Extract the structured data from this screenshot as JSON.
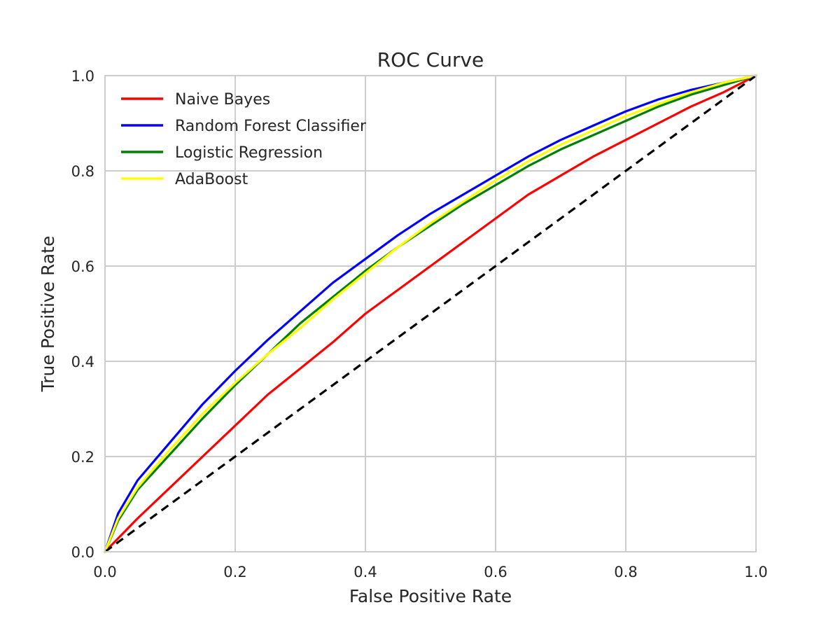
{
  "chart_data": {
    "type": "line",
    "title": "ROC Curve",
    "xlabel": "False Positive Rate",
    "ylabel": "True Positive Rate",
    "xlim": [
      0.0,
      1.0
    ],
    "ylim": [
      0.0,
      1.0
    ],
    "xticks": [
      "0.0",
      "0.2",
      "0.4",
      "0.6",
      "0.8",
      "1.0"
    ],
    "yticks": [
      "0.0",
      "0.2",
      "0.4",
      "0.6",
      "0.8",
      "1.0"
    ],
    "grid": true,
    "legend_position": "upper-left",
    "series": [
      {
        "name": "Naive Bayes",
        "color": "#ff0000",
        "x": [
          0.0,
          0.05,
          0.1,
          0.15,
          0.2,
          0.25,
          0.3,
          0.35,
          0.4,
          0.45,
          0.5,
          0.55,
          0.6,
          0.65,
          0.7,
          0.75,
          0.8,
          0.85,
          0.9,
          0.95,
          1.0
        ],
        "y": [
          0.0,
          0.07,
          0.135,
          0.2,
          0.265,
          0.33,
          0.385,
          0.44,
          0.5,
          0.55,
          0.6,
          0.65,
          0.7,
          0.75,
          0.79,
          0.83,
          0.865,
          0.9,
          0.935,
          0.965,
          1.0
        ]
      },
      {
        "name": "Random Forest Classifier",
        "color": "#0000ff",
        "x": [
          0.0,
          0.02,
          0.05,
          0.1,
          0.15,
          0.2,
          0.25,
          0.3,
          0.35,
          0.4,
          0.45,
          0.5,
          0.55,
          0.6,
          0.65,
          0.7,
          0.75,
          0.8,
          0.85,
          0.9,
          0.95,
          1.0
        ],
        "y": [
          0.0,
          0.08,
          0.15,
          0.23,
          0.31,
          0.38,
          0.445,
          0.505,
          0.565,
          0.615,
          0.665,
          0.71,
          0.75,
          0.79,
          0.83,
          0.865,
          0.895,
          0.925,
          0.95,
          0.97,
          0.985,
          1.0
        ]
      },
      {
        "name": "Logistic Regression",
        "color": "#008000",
        "x": [
          0.0,
          0.02,
          0.05,
          0.1,
          0.15,
          0.2,
          0.25,
          0.3,
          0.35,
          0.4,
          0.45,
          0.5,
          0.55,
          0.6,
          0.65,
          0.7,
          0.75,
          0.8,
          0.85,
          0.9,
          0.95,
          1.0
        ],
        "y": [
          0.0,
          0.065,
          0.13,
          0.205,
          0.28,
          0.35,
          0.415,
          0.48,
          0.535,
          0.59,
          0.64,
          0.685,
          0.73,
          0.77,
          0.81,
          0.845,
          0.875,
          0.905,
          0.935,
          0.96,
          0.98,
          1.0
        ]
      },
      {
        "name": "AdaBoost",
        "color": "#ffff00",
        "x": [
          0.0,
          0.02,
          0.05,
          0.1,
          0.15,
          0.2,
          0.25,
          0.3,
          0.35,
          0.4,
          0.45,
          0.5,
          0.55,
          0.6,
          0.65,
          0.7,
          0.75,
          0.8,
          0.85,
          0.9,
          0.95,
          1.0
        ],
        "y": [
          0.0,
          0.07,
          0.135,
          0.215,
          0.29,
          0.355,
          0.415,
          0.47,
          0.53,
          0.585,
          0.64,
          0.69,
          0.735,
          0.78,
          0.82,
          0.855,
          0.885,
          0.915,
          0.94,
          0.965,
          0.985,
          1.0
        ]
      },
      {
        "name": "",
        "color": "#000000",
        "dashed": true,
        "x": [
          0.0,
          1.0
        ],
        "y": [
          0.0,
          1.0
        ]
      }
    ]
  }
}
